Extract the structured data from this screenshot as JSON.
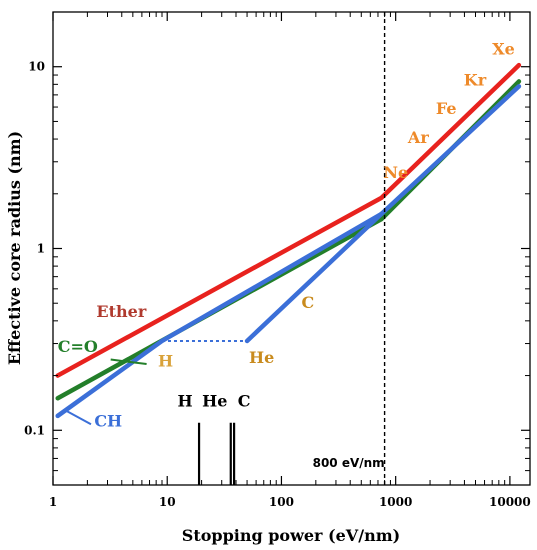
{
  "chart_data": {
    "type": "line",
    "xlabel": "Stopping power (eV/nm)",
    "ylabel": "Effective core radius (nm)",
    "xscale": "log",
    "yscale": "log",
    "xlim": [
      1,
      15000
    ],
    "ylim": [
      0.05,
      20
    ],
    "x_ticks": [
      1,
      10,
      100,
      1000,
      10000
    ],
    "x_tick_labels": [
      "1",
      "10",
      "100",
      "1000",
      "10000"
    ],
    "y_ticks": [
      0.1,
      1,
      10
    ],
    "y_tick_labels": [
      "0.1",
      "1",
      "10"
    ],
    "series": [
      {
        "name": "Ether",
        "color": "#e8221e",
        "x": [
          1.1,
          750,
          12000
        ],
        "y": [
          0.2,
          1.9,
          10.2
        ]
      },
      {
        "name": "C=O",
        "color": "#237f2a",
        "x": [
          1.1,
          750,
          12000
        ],
        "y": [
          0.15,
          1.45,
          8.3
        ]
      },
      {
        "name": "CH",
        "color": "#3b6fd8",
        "x": [
          1.1,
          9,
          750,
          12000
        ],
        "y": [
          0.12,
          0.31,
          1.55,
          7.8
        ]
      },
      {
        "name": "",
        "color": "#3b6fd8",
        "x": [
          50,
          750
        ],
        "y": [
          0.31,
          1.55
        ]
      }
    ],
    "connector": {
      "color": "#3b6fd8",
      "style": "dotted",
      "x": [
        9,
        50
      ],
      "y": [
        0.31,
        0.31
      ]
    },
    "vline": {
      "x": 800,
      "label": "800 eV/nm",
      "style": "dashed"
    },
    "bars": [
      {
        "label": "H",
        "x": 19,
        "y_range": [
          0.05,
          0.11
        ]
      },
      {
        "label": "He",
        "x": 36,
        "y_range": [
          0.05,
          0.11
        ]
      },
      {
        "label": "C",
        "x": 38.5,
        "y_range": [
          0.05,
          0.11
        ]
      }
    ],
    "annotations": [
      {
        "text": "Ether",
        "x": 2.4,
        "y": 0.42,
        "color": "#b03a2e"
      },
      {
        "text": "C=O",
        "x": 1.1,
        "y": 0.27,
        "color": "#237f2a"
      },
      {
        "text": "CH",
        "x": 2.3,
        "y": 0.105,
        "color": "#3b6fd8"
      },
      {
        "text": "H",
        "x": 8.3,
        "y": 0.225,
        "color": "#d9a23a"
      },
      {
        "text": "He",
        "x": 52,
        "y": 0.235,
        "color": "#c98b1e"
      },
      {
        "text": "C",
        "x": 150,
        "y": 0.47,
        "color": "#c98b1e"
      },
      {
        "text": "Ne",
        "x": 780,
        "y": 2.45,
        "color": "#ee8a2a"
      },
      {
        "text": "Ar",
        "x": 1280,
        "y": 3.8,
        "color": "#ee8a2a"
      },
      {
        "text": "Fe",
        "x": 2250,
        "y": 5.5,
        "color": "#ee8a2a"
      },
      {
        "text": "Kr",
        "x": 3950,
        "y": 7.9,
        "color": "#ee8a2a"
      },
      {
        "text": "Xe",
        "x": 7000,
        "y": 11.7,
        "color": "#ee8a2a"
      }
    ],
    "bar_labels_color": "#000000",
    "grid": false,
    "legend": "none"
  }
}
